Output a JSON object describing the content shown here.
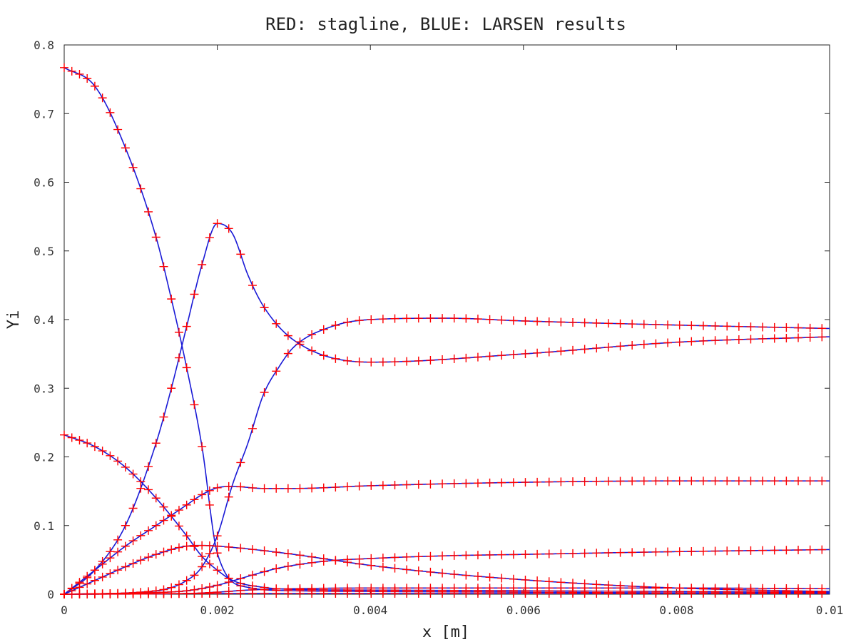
{
  "chart_data": {
    "type": "line",
    "title": "RED: stagline, BLUE: LARSEN results",
    "xlabel": "x [m]",
    "ylabel": "Yi",
    "xlim": [
      0,
      0.01
    ],
    "ylim": [
      0,
      0.8
    ],
    "xticks": [
      "0",
      "0.002",
      "0.004",
      "0.006",
      "0.008",
      "0.01"
    ],
    "yticks": [
      "0",
      "0.1",
      "0.2",
      "0.3",
      "0.4",
      "0.5",
      "0.6",
      "0.7",
      "0.8"
    ],
    "grid": false,
    "legend": "none",
    "colors": {
      "larsen_line": "#1a1ad6",
      "stagline_marker": "#ff0000",
      "frame": "#222222"
    },
    "marker": "plus",
    "series": [
      {
        "x": [
          0,
          0.0004,
          0.0008,
          0.0012,
          0.0014,
          0.0016,
          0.0018,
          0.002,
          0.0024,
          0.003,
          0.004,
          0.006,
          0.008,
          0.01
        ],
        "values": [
          0.767,
          0.74,
          0.65,
          0.52,
          0.43,
          0.33,
          0.215,
          0.06,
          0.01,
          0.005,
          0.004,
          0.003,
          0.002,
          0.002
        ]
      },
      {
        "x": [
          0,
          0.0004,
          0.0008,
          0.0012,
          0.0014,
          0.0016,
          0.0018,
          0.002,
          0.0022,
          0.0024,
          0.0026,
          0.003,
          0.004,
          0.006,
          0.008,
          0.01
        ],
        "values": [
          0,
          0.035,
          0.1,
          0.22,
          0.3,
          0.39,
          0.48,
          0.54,
          0.525,
          0.465,
          0.42,
          0.37,
          0.338,
          0.35,
          0.367,
          0.375
        ]
      },
      {
        "x": [
          0,
          0.0012,
          0.0016,
          0.0018,
          0.002,
          0.0022,
          0.0024,
          0.0026,
          0.0028,
          0.003,
          0.0035,
          0.004,
          0.005,
          0.006,
          0.008,
          0.01
        ],
        "values": [
          0,
          0.005,
          0.02,
          0.04,
          0.085,
          0.16,
          0.22,
          0.29,
          0.33,
          0.36,
          0.39,
          0.4,
          0.402,
          0.398,
          0.392,
          0.387
        ]
      },
      {
        "x": [
          0,
          0.0004,
          0.0008,
          0.0012,
          0.0016,
          0.0018,
          0.002,
          0.0022,
          0.0026,
          0.003,
          0.004,
          0.006,
          0.008,
          0.01
        ],
        "values": [
          0.232,
          0.215,
          0.185,
          0.14,
          0.085,
          0.055,
          0.035,
          0.02,
          0.01,
          0.007,
          0.006,
          0.005,
          0.004,
          0.003
        ]
      },
      {
        "x": [
          0,
          0.0004,
          0.0008,
          0.0012,
          0.0016,
          0.0018,
          0.002,
          0.0022,
          0.0026,
          0.003,
          0.004,
          0.006,
          0.008,
          0.01
        ],
        "values": [
          0,
          0.035,
          0.07,
          0.1,
          0.13,
          0.145,
          0.155,
          0.157,
          0.154,
          0.154,
          0.158,
          0.163,
          0.165,
          0.165
        ]
      },
      {
        "x": [
          0,
          0.0004,
          0.0008,
          0.0012,
          0.0016,
          0.0018,
          0.002,
          0.0024,
          0.003,
          0.004,
          0.005,
          0.006,
          0.007,
          0.008,
          0.009,
          0.01
        ],
        "values": [
          0,
          0.02,
          0.04,
          0.058,
          0.07,
          0.071,
          0.07,
          0.066,
          0.058,
          0.042,
          0.03,
          0.021,
          0.014,
          0.009,
          0.006,
          0.004
        ]
      },
      {
        "x": [
          0,
          0.001,
          0.0016,
          0.002,
          0.0024,
          0.0028,
          0.0034,
          0.004,
          0.005,
          0.006,
          0.008,
          0.01
        ],
        "values": [
          0,
          0.002,
          0.005,
          0.013,
          0.026,
          0.038,
          0.048,
          0.052,
          0.056,
          0.058,
          0.062,
          0.065
        ]
      },
      {
        "x": [
          0,
          0.0016,
          0.002,
          0.0024,
          0.003,
          0.004,
          0.006,
          0.008,
          0.01
        ],
        "values": [
          0,
          0.001,
          0.003,
          0.006,
          0.008,
          0.009,
          0.009,
          0.009,
          0.008
        ]
      },
      {
        "x": [
          0,
          0.002,
          0.004,
          0.006,
          0.008,
          0.01
        ],
        "values": [
          0,
          0.001,
          0.001,
          0.001,
          0.001,
          0.001
        ]
      }
    ]
  }
}
